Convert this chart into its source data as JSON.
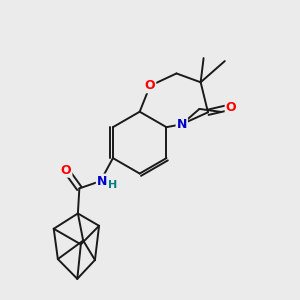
{
  "background_color": "#ebebeb",
  "bond_color": "#1a1a1a",
  "figsize": [
    3.0,
    3.0
  ],
  "dpi": 100,
  "atom_colors": {
    "O": "#ff0000",
    "N": "#0000cc",
    "N_NH": "#008080",
    "C": "#1a1a1a",
    "H": "#888888"
  },
  "bond_lw": 1.4
}
